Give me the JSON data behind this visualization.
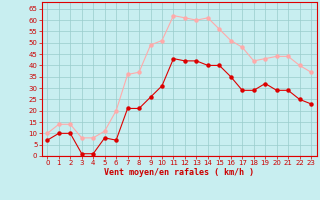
{
  "x": [
    0,
    1,
    2,
    3,
    4,
    5,
    6,
    7,
    8,
    9,
    10,
    11,
    12,
    13,
    14,
    15,
    16,
    17,
    18,
    19,
    20,
    21,
    22,
    23
  ],
  "wind_avg": [
    7,
    10,
    10,
    1,
    1,
    8,
    7,
    21,
    21,
    26,
    31,
    43,
    42,
    42,
    40,
    40,
    35,
    29,
    29,
    32,
    29,
    29,
    25,
    23
  ],
  "wind_gust": [
    10,
    14,
    14,
    8,
    8,
    11,
    20,
    36,
    37,
    49,
    51,
    62,
    61,
    60,
    61,
    56,
    51,
    48,
    42,
    43,
    44,
    44,
    40,
    37
  ],
  "avg_color": "#dd0000",
  "gust_color": "#ffaaaa",
  "bg_color": "#c8eef0",
  "grid_color": "#99cccc",
  "xlabel": "Vent moyen/en rafales ( km/h )",
  "xlabel_color": "#cc0000",
  "yticks": [
    0,
    5,
    10,
    15,
    20,
    25,
    30,
    35,
    40,
    45,
    50,
    55,
    60,
    65
  ],
  "ylim": [
    0,
    68
  ],
  "tick_label_color": "#cc0000",
  "marker_size": 2.2,
  "line_width": 0.8,
  "tick_fontsize": 5.0,
  "xlabel_fontsize": 6.0
}
